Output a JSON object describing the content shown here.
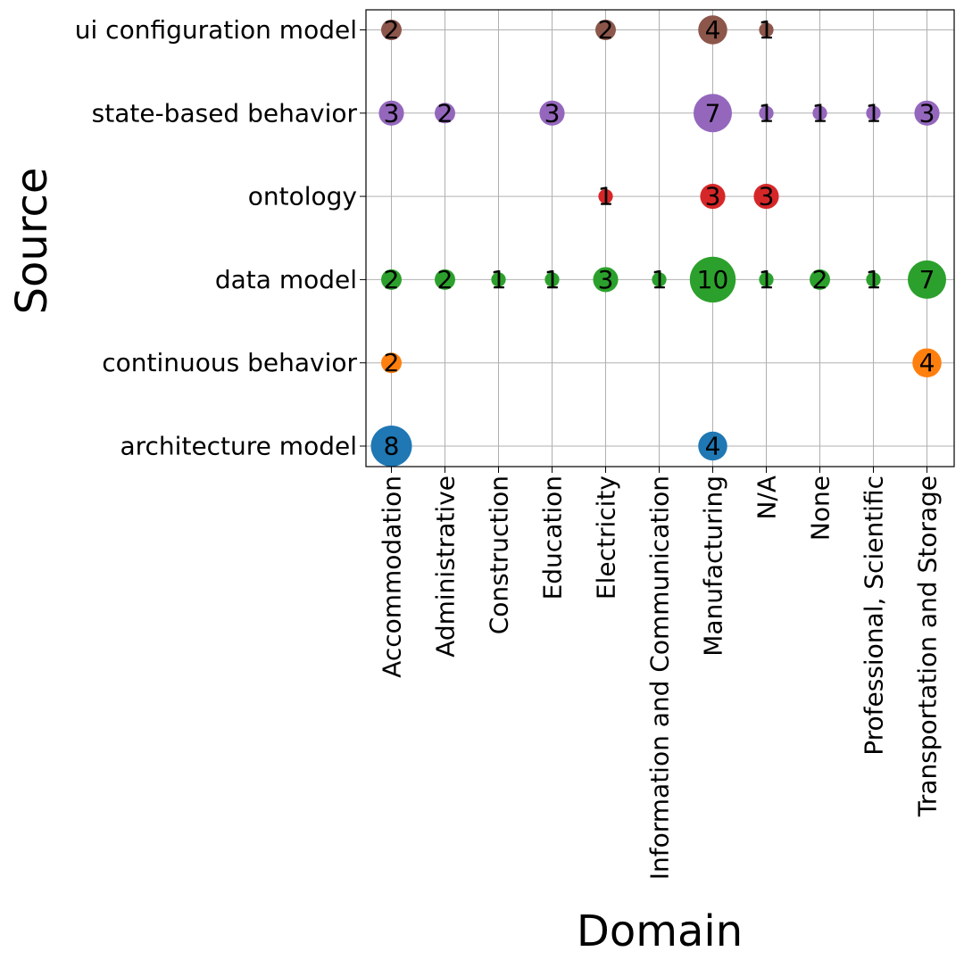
{
  "chart_data": {
    "type": "scatter",
    "subtype": "bubble",
    "xlabel": "Domain",
    "ylabel": "Source",
    "grid": true,
    "legend": "none",
    "x_categories": [
      "Accommodation",
      "Administrative",
      "Construction",
      "Education",
      "Electricity",
      "Information and Communication",
      "Manufacturing",
      "N/A",
      "None",
      "Professional, Scientific",
      "Transportation and Storage"
    ],
    "y_categories": [
      "architecture model",
      "continuous behavior",
      "data model",
      "ontology",
      "state-based behavior",
      "ui configuration model"
    ],
    "series": [
      {
        "name": "architecture model",
        "color": "#1f77b4",
        "points": [
          {
            "x": "Accommodation",
            "value": 8
          },
          {
            "x": "Manufacturing",
            "value": 4
          }
        ]
      },
      {
        "name": "continuous behavior",
        "color": "#ff7f0e",
        "points": [
          {
            "x": "Accommodation",
            "value": 2
          },
          {
            "x": "Transportation and Storage",
            "value": 4
          }
        ]
      },
      {
        "name": "data model",
        "color": "#2ca02c",
        "points": [
          {
            "x": "Accommodation",
            "value": 2
          },
          {
            "x": "Administrative",
            "value": 2
          },
          {
            "x": "Construction",
            "value": 1
          },
          {
            "x": "Education",
            "value": 1
          },
          {
            "x": "Electricity",
            "value": 3
          },
          {
            "x": "Information and Communication",
            "value": 1
          },
          {
            "x": "Manufacturing",
            "value": 10
          },
          {
            "x": "N/A",
            "value": 1
          },
          {
            "x": "None",
            "value": 2
          },
          {
            "x": "Professional, Scientific",
            "value": 1
          },
          {
            "x": "Transportation and Storage",
            "value": 7
          }
        ]
      },
      {
        "name": "ontology",
        "color": "#d62728",
        "points": [
          {
            "x": "Electricity",
            "value": 1
          },
          {
            "x": "Manufacturing",
            "value": 3
          },
          {
            "x": "N/A",
            "value": 3
          }
        ]
      },
      {
        "name": "state-based behavior",
        "color": "#9467bd",
        "points": [
          {
            "x": "Accommodation",
            "value": 3
          },
          {
            "x": "Administrative",
            "value": 2
          },
          {
            "x": "Education",
            "value": 3
          },
          {
            "x": "Manufacturing",
            "value": 7
          },
          {
            "x": "N/A",
            "value": 1
          },
          {
            "x": "None",
            "value": 1
          },
          {
            "x": "Professional, Scientific",
            "value": 1
          },
          {
            "x": "Transportation and Storage",
            "value": 3
          }
        ]
      },
      {
        "name": "ui configuration model",
        "color": "#8c564b",
        "points": [
          {
            "x": "Accommodation",
            "value": 2
          },
          {
            "x": "Electricity",
            "value": 2
          },
          {
            "x": "Manufacturing",
            "value": 4
          },
          {
            "x": "N/A",
            "value": 1
          }
        ]
      }
    ]
  }
}
